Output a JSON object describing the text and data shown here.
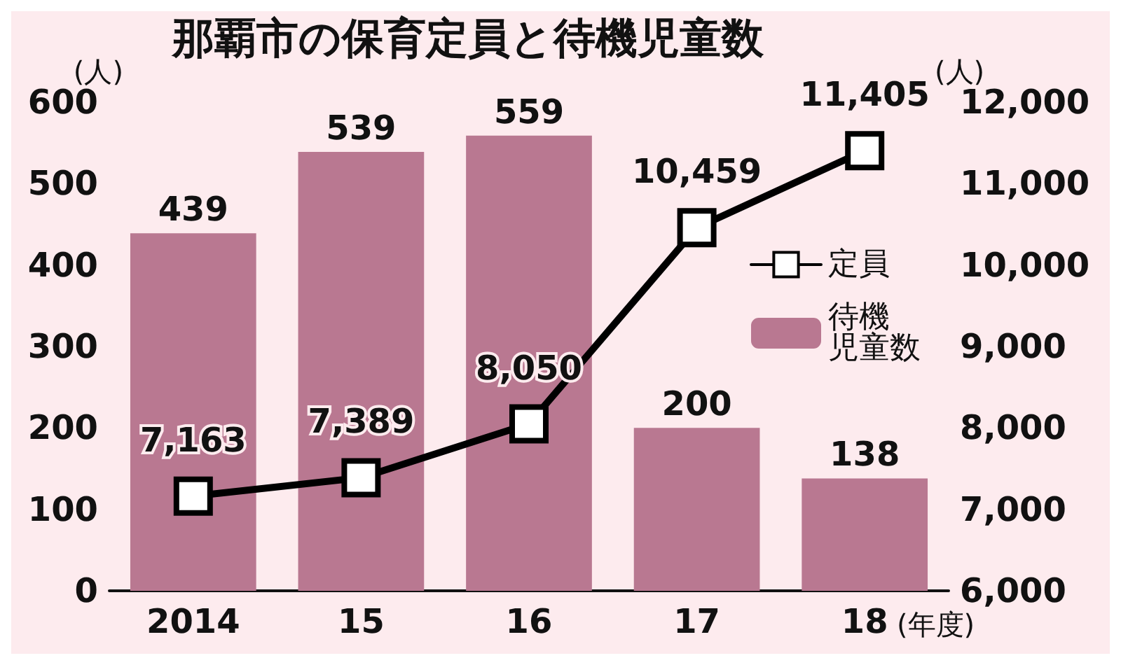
{
  "chart_data": {
    "type": "bar",
    "title": "那覇市の保育定員と待機児童数",
    "xlabel": "(年度)",
    "ylabel": "(人)",
    "y2label": "(人)",
    "categories": [
      "2014",
      "15",
      "16",
      "17",
      "18"
    ],
    "series": [
      {
        "name": "定員",
        "type": "line",
        "axis": "y2",
        "color": "#000000",
        "marker": "square",
        "line_style": "solid",
        "values": [
          7163,
          7389,
          8050,
          10459,
          11405
        ],
        "value_labels": [
          "7,163",
          "7,389",
          "8,050",
          "10,459",
          "11,405"
        ]
      },
      {
        "name": "待機児童数",
        "type": "bar",
        "color": "#b97891",
        "values": [
          439,
          539,
          559,
          200,
          138
        ],
        "value_labels": [
          "439",
          "539",
          "559",
          "200",
          "138"
        ]
      }
    ],
    "ylim": [
      0,
      600
    ],
    "yticks": [
      0,
      100,
      200,
      300,
      400,
      500,
      600
    ],
    "y2lim": [
      6000,
      12000
    ],
    "y2ticks": [
      {
        "value": 6000,
        "label": "6,000"
      },
      {
        "value": 7000,
        "label": "7,000"
      },
      {
        "value": 8000,
        "label": "8,000"
      },
      {
        "value": 9000,
        "label": "9,000"
      },
      {
        "value": 10000,
        "label": "10,000"
      },
      {
        "value": 11000,
        "label": "11,000"
      },
      {
        "value": 12000,
        "label": "12,000"
      }
    ],
    "legend": "right",
    "grid": false
  }
}
